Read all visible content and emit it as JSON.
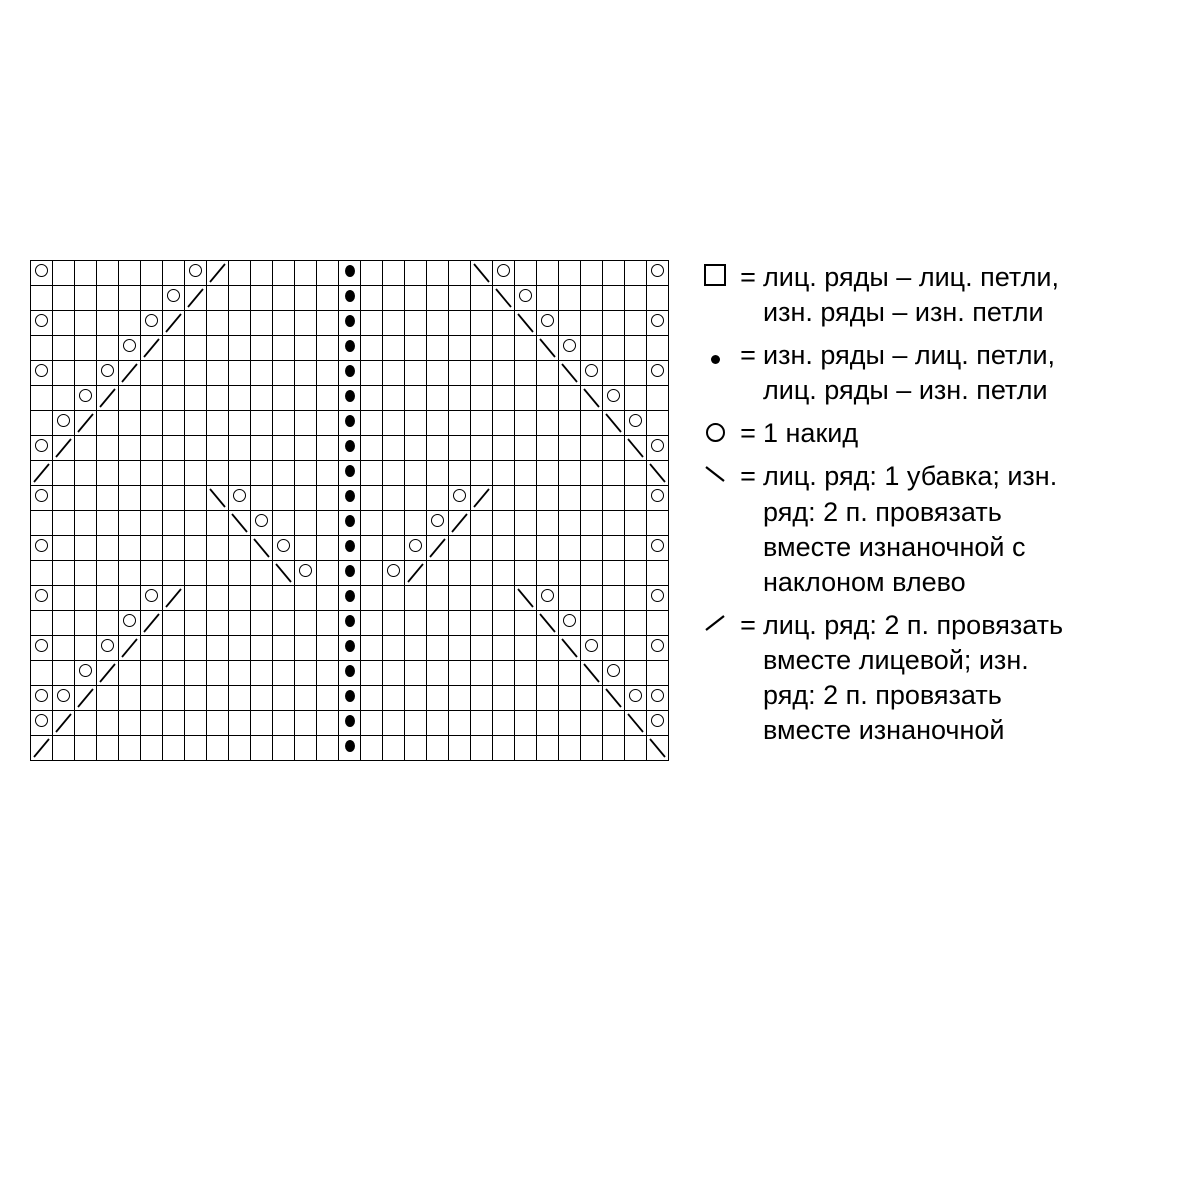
{
  "chart": {
    "rows": 20,
    "cols": 29,
    "cell_border": "#000000",
    "background": "#ffffff",
    "cells": [
      {
        "r": 0,
        "c": 0,
        "s": "O"
      },
      {
        "r": 0,
        "c": 7,
        "s": "O"
      },
      {
        "r": 0,
        "c": 8,
        "s": "/"
      },
      {
        "r": 0,
        "c": 14,
        "s": "D"
      },
      {
        "r": 0,
        "c": 20,
        "s": "\\"
      },
      {
        "r": 0,
        "c": 21,
        "s": "O"
      },
      {
        "r": 0,
        "c": 28,
        "s": "O"
      },
      {
        "r": 1,
        "c": 6,
        "s": "O"
      },
      {
        "r": 1,
        "c": 7,
        "s": "/"
      },
      {
        "r": 1,
        "c": 14,
        "s": "D"
      },
      {
        "r": 1,
        "c": 21,
        "s": "\\"
      },
      {
        "r": 1,
        "c": 22,
        "s": "O"
      },
      {
        "r": 2,
        "c": 0,
        "s": "O"
      },
      {
        "r": 2,
        "c": 5,
        "s": "O"
      },
      {
        "r": 2,
        "c": 6,
        "s": "/"
      },
      {
        "r": 2,
        "c": 14,
        "s": "D"
      },
      {
        "r": 2,
        "c": 22,
        "s": "\\"
      },
      {
        "r": 2,
        "c": 23,
        "s": "O"
      },
      {
        "r": 2,
        "c": 28,
        "s": "O"
      },
      {
        "r": 3,
        "c": 4,
        "s": "O"
      },
      {
        "r": 3,
        "c": 5,
        "s": "/"
      },
      {
        "r": 3,
        "c": 14,
        "s": "D"
      },
      {
        "r": 3,
        "c": 23,
        "s": "\\"
      },
      {
        "r": 3,
        "c": 24,
        "s": "O"
      },
      {
        "r": 4,
        "c": 0,
        "s": "O"
      },
      {
        "r": 4,
        "c": 3,
        "s": "O"
      },
      {
        "r": 4,
        "c": 4,
        "s": "/"
      },
      {
        "r": 4,
        "c": 14,
        "s": "D"
      },
      {
        "r": 4,
        "c": 24,
        "s": "\\"
      },
      {
        "r": 4,
        "c": 25,
        "s": "O"
      },
      {
        "r": 4,
        "c": 28,
        "s": "O"
      },
      {
        "r": 5,
        "c": 2,
        "s": "O"
      },
      {
        "r": 5,
        "c": 3,
        "s": "/"
      },
      {
        "r": 5,
        "c": 14,
        "s": "D"
      },
      {
        "r": 5,
        "c": 25,
        "s": "\\"
      },
      {
        "r": 5,
        "c": 26,
        "s": "O"
      },
      {
        "r": 6,
        "c": 1,
        "s": "O"
      },
      {
        "r": 6,
        "c": 2,
        "s": "/"
      },
      {
        "r": 6,
        "c": 14,
        "s": "D"
      },
      {
        "r": 6,
        "c": 26,
        "s": "\\"
      },
      {
        "r": 6,
        "c": 27,
        "s": "O"
      },
      {
        "r": 7,
        "c": 0,
        "s": "O"
      },
      {
        "r": 7,
        "c": 1,
        "s": "/"
      },
      {
        "r": 7,
        "c": 14,
        "s": "D"
      },
      {
        "r": 7,
        "c": 27,
        "s": "\\"
      },
      {
        "r": 7,
        "c": 28,
        "s": "O"
      },
      {
        "r": 8,
        "c": 0,
        "s": "/"
      },
      {
        "r": 8,
        "c": 14,
        "s": "D"
      },
      {
        "r": 8,
        "c": 28,
        "s": "\\"
      },
      {
        "r": 9,
        "c": 0,
        "s": "O"
      },
      {
        "r": 9,
        "c": 8,
        "s": "\\"
      },
      {
        "r": 9,
        "c": 9,
        "s": "O"
      },
      {
        "r": 9,
        "c": 14,
        "s": "D"
      },
      {
        "r": 9,
        "c": 19,
        "s": "O"
      },
      {
        "r": 9,
        "c": 20,
        "s": "/"
      },
      {
        "r": 9,
        "c": 28,
        "s": "O"
      },
      {
        "r": 10,
        "c": 9,
        "s": "\\"
      },
      {
        "r": 10,
        "c": 10,
        "s": "O"
      },
      {
        "r": 10,
        "c": 14,
        "s": "D"
      },
      {
        "r": 10,
        "c": 18,
        "s": "O"
      },
      {
        "r": 10,
        "c": 19,
        "s": "/"
      },
      {
        "r": 11,
        "c": 0,
        "s": "O"
      },
      {
        "r": 11,
        "c": 10,
        "s": "\\"
      },
      {
        "r": 11,
        "c": 11,
        "s": "O"
      },
      {
        "r": 11,
        "c": 14,
        "s": "D"
      },
      {
        "r": 11,
        "c": 17,
        "s": "O"
      },
      {
        "r": 11,
        "c": 18,
        "s": "/"
      },
      {
        "r": 11,
        "c": 28,
        "s": "O"
      },
      {
        "r": 12,
        "c": 11,
        "s": "\\"
      },
      {
        "r": 12,
        "c": 12,
        "s": "O"
      },
      {
        "r": 12,
        "c": 14,
        "s": "D"
      },
      {
        "r": 12,
        "c": 16,
        "s": "O"
      },
      {
        "r": 12,
        "c": 17,
        "s": "/"
      },
      {
        "r": 13,
        "c": 0,
        "s": "O"
      },
      {
        "r": 13,
        "c": 5,
        "s": "O"
      },
      {
        "r": 13,
        "c": 6,
        "s": "/"
      },
      {
        "r": 13,
        "c": 14,
        "s": "D"
      },
      {
        "r": 13,
        "c": 22,
        "s": "\\"
      },
      {
        "r": 13,
        "c": 23,
        "s": "O"
      },
      {
        "r": 13,
        "c": 28,
        "s": "O"
      },
      {
        "r": 14,
        "c": 4,
        "s": "O"
      },
      {
        "r": 14,
        "c": 5,
        "s": "/"
      },
      {
        "r": 14,
        "c": 14,
        "s": "D"
      },
      {
        "r": 14,
        "c": 23,
        "s": "\\"
      },
      {
        "r": 14,
        "c": 24,
        "s": "O"
      },
      {
        "r": 15,
        "c": 0,
        "s": "O"
      },
      {
        "r": 15,
        "c": 3,
        "s": "O"
      },
      {
        "r": 15,
        "c": 4,
        "s": "/"
      },
      {
        "r": 15,
        "c": 14,
        "s": "D"
      },
      {
        "r": 15,
        "c": 24,
        "s": "\\"
      },
      {
        "r": 15,
        "c": 25,
        "s": "O"
      },
      {
        "r": 15,
        "c": 28,
        "s": "O"
      },
      {
        "r": 16,
        "c": 2,
        "s": "O"
      },
      {
        "r": 16,
        "c": 3,
        "s": "/"
      },
      {
        "r": 16,
        "c": 14,
        "s": "D"
      },
      {
        "r": 16,
        "c": 25,
        "s": "\\"
      },
      {
        "r": 16,
        "c": 26,
        "s": "O"
      },
      {
        "r": 17,
        "c": 0,
        "s": "O"
      },
      {
        "r": 17,
        "c": 1,
        "s": "O"
      },
      {
        "r": 17,
        "c": 2,
        "s": "/"
      },
      {
        "r": 17,
        "c": 14,
        "s": "D"
      },
      {
        "r": 17,
        "c": 26,
        "s": "\\"
      },
      {
        "r": 17,
        "c": 27,
        "s": "O"
      },
      {
        "r": 17,
        "c": 28,
        "s": "O"
      },
      {
        "r": 18,
        "c": 0,
        "s": "O"
      },
      {
        "r": 18,
        "c": 1,
        "s": "/"
      },
      {
        "r": 18,
        "c": 14,
        "s": "D"
      },
      {
        "r": 18,
        "c": 27,
        "s": "\\"
      },
      {
        "r": 18,
        "c": 28,
        "s": "O"
      },
      {
        "r": 19,
        "c": 0,
        "s": "/"
      },
      {
        "r": 19,
        "c": 14,
        "s": "D"
      },
      {
        "r": 19,
        "c": 28,
        "s": "\\"
      }
    ]
  },
  "legend": {
    "eq": "=",
    "items": [
      {
        "sym": "square",
        "text": "лиц. ряды – лиц. пет­ли, изн. ряды – изн. петли"
      },
      {
        "sym": "dot",
        "text": "изн. ряды – лиц. петли, лиц. ряды – изн. петли"
      },
      {
        "sym": "yo",
        "text": "1 накид"
      },
      {
        "sym": "bslash",
        "text": "лиц. ряд: 1 убавка; изн. ряд: 2 п. провя­зать вместе изнаноч­ной с наклоном влево"
      },
      {
        "sym": "fslash",
        "text": "лиц. ряд: 2 п. провя­зать вместе лицевой; изн. ряд: 2 п. провя­зать вместе изнаноч­ной"
      }
    ]
  }
}
